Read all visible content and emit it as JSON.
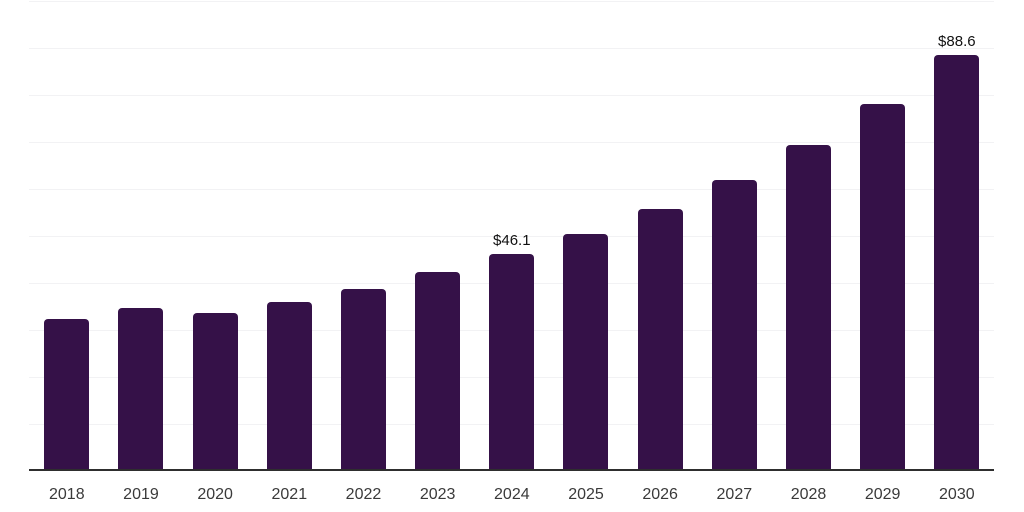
{
  "chart_data": {
    "type": "bar",
    "title": "",
    "xlabel": "",
    "ylabel": "",
    "categories": [
      "2018",
      "2019",
      "2020",
      "2021",
      "2022",
      "2023",
      "2024",
      "2025",
      "2026",
      "2027",
      "2028",
      "2029",
      "2030"
    ],
    "values": [
      32.3,
      34.6,
      33.6,
      36.0,
      38.7,
      42.3,
      46.1,
      50.4,
      55.7,
      61.9,
      69.4,
      78.1,
      88.6
    ],
    "data_labels": {
      "2024": "$46.1",
      "2030": "$88.6"
    },
    "ylim": [
      0,
      100
    ],
    "gridline_step": 10,
    "grid": true,
    "legend": false,
    "colors": {
      "bar": "#351148",
      "axis_line": "#2e2e2e",
      "gridline": "#f2f2f4",
      "x_label": "#3a3a3a",
      "value_label": "#111111",
      "background": "#ffffff"
    }
  }
}
